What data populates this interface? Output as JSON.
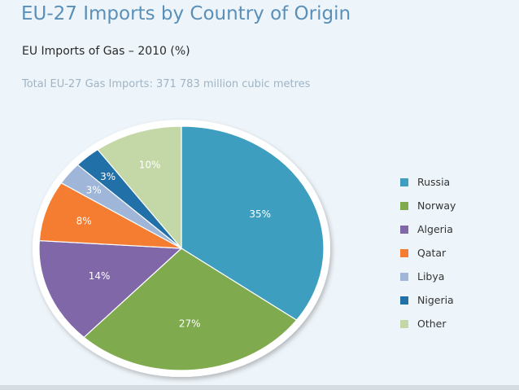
{
  "header": {
    "title": "EU-27 Imports by Country of Origin",
    "subtitle": "EU Imports of Gas – 2010 (%)",
    "note": "Total EU-27 Gas Imports: 371 783 million cubic metres"
  },
  "chart_data": {
    "type": "pie",
    "title": "EU Imports of Gas – 2010 (%)",
    "unit": "%",
    "categories": [
      "Russia",
      "Norway",
      "Algeria",
      "Qatar",
      "Libya",
      "Nigeria",
      "Other"
    ],
    "values": [
      35,
      27,
      14,
      8,
      3,
      3,
      10
    ],
    "labels": [
      "35%",
      "27%",
      "14%",
      "8%",
      "3%",
      "3%",
      "10%"
    ],
    "colors": [
      "#3e9ebf",
      "#7faa4e",
      "#8067a8",
      "#f47d31",
      "#9fb6d9",
      "#2170a8",
      "#c3d8a6"
    ],
    "legend_position": "right",
    "start_angle": "12 o'clock",
    "direction": "clockwise"
  }
}
